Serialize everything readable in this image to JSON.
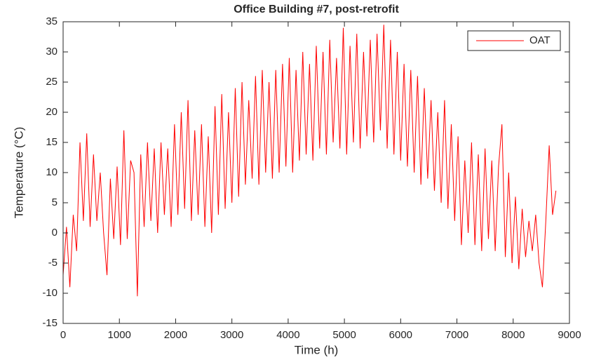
{
  "chart_data": {
    "type": "line",
    "title": "Office Building #7, post-retrofit",
    "xlabel": "Time (h)",
    "ylabel": "Temperature (°C)",
    "x": [
      0,
      60,
      120,
      180,
      240,
      300,
      360,
      420,
      480,
      540,
      600,
      660,
      720,
      780,
      840,
      900,
      960,
      1020,
      1080,
      1140,
      1200,
      1260,
      1320,
      1380,
      1440,
      1500,
      1560,
      1620,
      1680,
      1740,
      1800,
      1860,
      1920,
      1980,
      2040,
      2100,
      2160,
      2220,
      2280,
      2340,
      2400,
      2460,
      2520,
      2580,
      2640,
      2700,
      2760,
      2820,
      2880,
      2940,
      3000,
      3060,
      3120,
      3180,
      3240,
      3300,
      3360,
      3420,
      3480,
      3540,
      3600,
      3660,
      3720,
      3780,
      3840,
      3900,
      3960,
      4020,
      4080,
      4140,
      4200,
      4260,
      4320,
      4380,
      4440,
      4500,
      4560,
      4620,
      4680,
      4740,
      4800,
      4860,
      4920,
      4980,
      5040,
      5100,
      5160,
      5220,
      5280,
      5340,
      5400,
      5460,
      5520,
      5580,
      5640,
      5700,
      5760,
      5820,
      5880,
      5940,
      6000,
      6060,
      6120,
      6180,
      6240,
      6300,
      6360,
      6420,
      6480,
      6540,
      6600,
      6660,
      6720,
      6780,
      6840,
      6900,
      6960,
      7020,
      7080,
      7140,
      7200,
      7260,
      7320,
      7380,
      7440,
      7500,
      7560,
      7620,
      7680,
      7740,
      7800,
      7860,
      7920,
      7980,
      8040,
      8100,
      8160,
      8220,
      8280,
      8340,
      8400,
      8460,
      8520,
      8580,
      8640,
      8700,
      8760
    ],
    "series": [
      {
        "name": "OAT",
        "color": "#ff0000",
        "values": [
          -7,
          1,
          -9,
          3,
          -3,
          15,
          2,
          16.5,
          1,
          13,
          2,
          10,
          0,
          -7,
          9,
          -1,
          11,
          -2,
          17,
          -1,
          12,
          10,
          -10.5,
          13,
          1,
          15,
          2,
          14,
          0,
          15,
          3,
          14,
          1,
          18,
          3,
          20,
          4,
          22,
          2,
          17,
          3,
          18,
          1,
          16,
          0,
          21,
          3,
          23,
          4,
          20,
          5,
          24,
          6,
          25,
          8,
          22,
          9,
          26,
          8,
          27,
          10,
          25,
          9,
          27,
          10,
          28,
          11,
          29,
          10,
          27,
          12,
          30,
          13,
          28,
          12,
          31,
          14,
          30,
          13,
          32,
          15,
          29,
          14,
          34,
          13,
          31,
          15,
          33,
          14,
          30,
          16,
          32,
          15,
          33,
          17,
          34.5,
          14,
          32,
          13,
          30,
          12,
          28,
          11,
          27,
          10,
          26,
          8,
          24,
          9,
          22,
          7,
          20,
          5,
          22,
          4,
          18,
          2,
          16,
          -2,
          12,
          0,
          15,
          -2,
          13,
          -3,
          14,
          -1,
          12,
          -3,
          11,
          18,
          -4,
          10,
          -5,
          6,
          -6,
          4,
          -4,
          2,
          -3,
          3,
          -5,
          -9,
          2,
          14.5,
          3,
          7
        ]
      }
    ],
    "xlim": [
      0,
      9000
    ],
    "ylim": [
      -15,
      35
    ],
    "xticks": [
      0,
      1000,
      2000,
      3000,
      4000,
      5000,
      6000,
      7000,
      8000,
      9000
    ],
    "yticks": [
      -15,
      -10,
      -5,
      0,
      5,
      10,
      15,
      20,
      25,
      30,
      35
    ],
    "legend": "upper right"
  }
}
